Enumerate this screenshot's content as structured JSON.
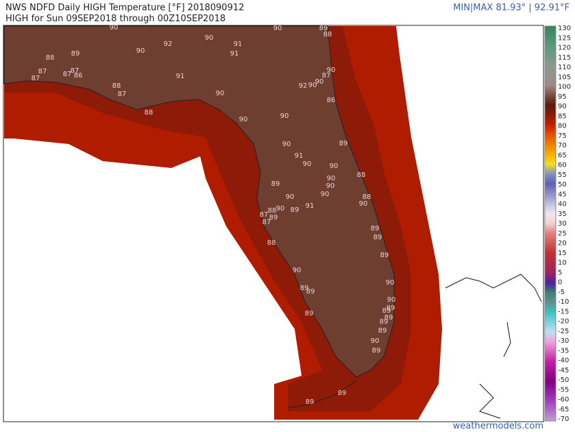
{
  "header": {
    "title": "NWS NDFD Daily HIGH Temperature [°F] 2018090912",
    "subtitle": "HIGH for Sun 09SEP2018 through 00Z10SEP2018",
    "minmax": "MIN|MAX 81.93° | 92.91°F"
  },
  "colorbar": {
    "ticks": [
      130,
      125,
      120,
      115,
      110,
      105,
      100,
      95,
      90,
      85,
      80,
      75,
      70,
      65,
      60,
      55,
      50,
      45,
      40,
      35,
      30,
      25,
      20,
      15,
      10,
      5,
      0,
      -5,
      -10,
      -15,
      -20,
      -25,
      -30,
      -35,
      -40,
      -45,
      -50,
      -55,
      -60,
      -65,
      -70
    ]
  },
  "map": {
    "station_labels": [
      90,
      90,
      89,
      88,
      90,
      92,
      90,
      91,
      91,
      88,
      89,
      87,
      87,
      87,
      86,
      87,
      91,
      90,
      87,
      92,
      90,
      90,
      88,
      87,
      90,
      86,
      88,
      90,
      90,
      89,
      90,
      91,
      90,
      90,
      90,
      90,
      88,
      90,
      89,
      90,
      88,
      90,
      91,
      90,
      89,
      88,
      87,
      89,
      87,
      89,
      89,
      88,
      89,
      90,
      90,
      89,
      89,
      90,
      89,
      89,
      89,
      89,
      89,
      90,
      89,
      89,
      89,
      89
    ]
  },
  "footer": {
    "credit": "weathermodels.com"
  }
}
